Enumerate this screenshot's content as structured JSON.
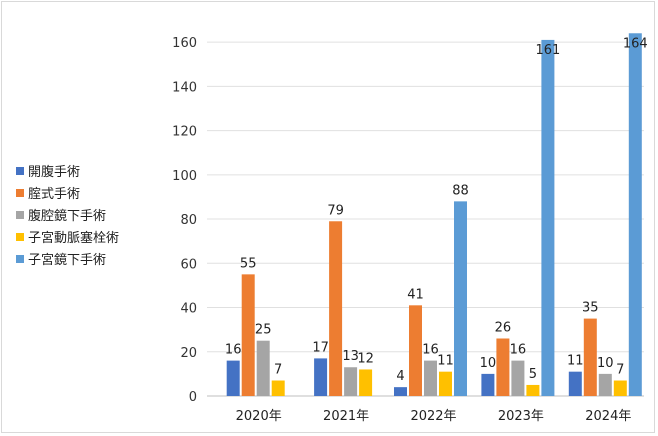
{
  "chart_data": {
    "type": "bar",
    "title": "",
    "xlabel": "",
    "ylabel": "",
    "categories": [
      "2020年",
      "2021年",
      "2022年",
      "2023年",
      "2024年"
    ],
    "ylim": [
      0,
      170
    ],
    "yticks": [
      0,
      20,
      40,
      60,
      80,
      100,
      120,
      140,
      160
    ],
    "grid": true,
    "legend_position": "left",
    "series": [
      {
        "name": "開腹手術",
        "color": "#4472c4",
        "values": [
          16,
          17,
          4,
          10,
          11
        ]
      },
      {
        "name": "腟式手術",
        "color": "#ed7d31",
        "values": [
          55,
          79,
          41,
          26,
          35
        ]
      },
      {
        "name": "腹腔鏡下手術",
        "color": "#a5a5a5",
        "values": [
          25,
          13,
          16,
          16,
          10
        ]
      },
      {
        "name": "子宮動脈塞栓術",
        "color": "#ffc000",
        "values": [
          7,
          12,
          11,
          5,
          7
        ]
      },
      {
        "name": "子宮鏡下手術",
        "color": "#5b9bd5",
        "values": [
          null,
          null,
          88,
          161,
          164
        ]
      }
    ]
  }
}
